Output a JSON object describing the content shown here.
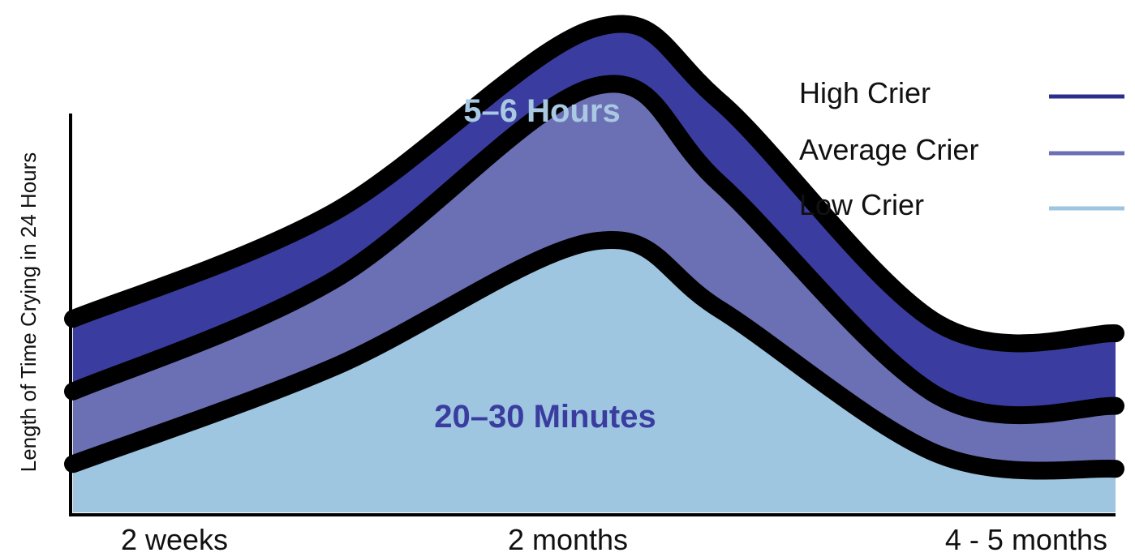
{
  "chart_data": {
    "type": "area",
    "ylabel": "Length of Time Crying in 24 Hours",
    "xlabel": "",
    "x_tick_labels": [
      "2 weeks",
      "2 months",
      "4 - 5 months"
    ],
    "grid": false,
    "legend_position": "top-right",
    "series": [
      {
        "name": "High Crier",
        "color": "#3a3d9f",
        "label": "5–6 Hours",
        "values": [
          0.4,
          0.62,
          1.0,
          0.85,
          0.39,
          0.37
        ]
      },
      {
        "name": "Average Crier",
        "color": "#6b70b4",
        "values": [
          0.25,
          0.48,
          0.88,
          0.68,
          0.24,
          0.22
        ]
      },
      {
        "name": "Low Crier",
        "color": "#9ec6e0",
        "label": "20–30 Minutes",
        "values": [
          0.1,
          0.3,
          0.56,
          0.42,
          0.12,
          0.09
        ]
      }
    ],
    "x": [
      0,
      0.25,
      0.5,
      0.62,
      0.83,
      1.0
    ]
  }
}
